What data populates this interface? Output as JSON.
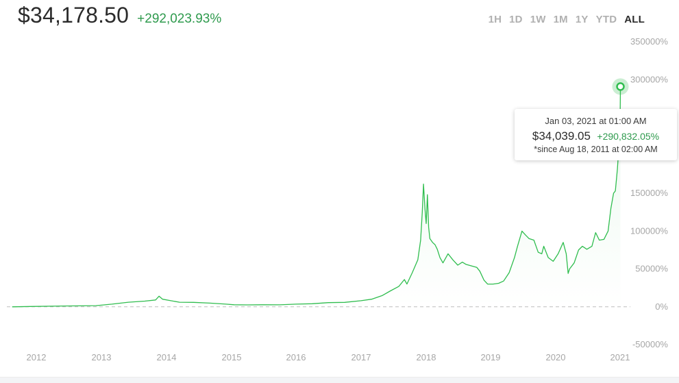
{
  "header": {
    "price": "$34,178.50",
    "change": "+292,023.93%"
  },
  "ranges": [
    {
      "label": "1H",
      "active": false
    },
    {
      "label": "1D",
      "active": false
    },
    {
      "label": "1W",
      "active": false
    },
    {
      "label": "1M",
      "active": false
    },
    {
      "label": "1Y",
      "active": false
    },
    {
      "label": "YTD",
      "active": false
    },
    {
      "label": "ALL",
      "active": true
    }
  ],
  "tooltip": {
    "date": "Jan 03, 2021 at 01:00 AM",
    "price": "$34,039.05",
    "change": "+290,832.05%",
    "since": "*since Aug 18, 2011 at 02:00 AM"
  },
  "colors": {
    "line": "#2fbd4e",
    "positive_text": "#2e9a4d",
    "zero_line": "#bdbdbd",
    "tick_text": "#a6a6a6"
  },
  "chart_data": {
    "type": "line",
    "title": "",
    "xlabel": "",
    "ylabel": "",
    "ylim": [
      -50000,
      350000
    ],
    "y_ticks": [
      "350000%",
      "300000%",
      "250000%",
      "200000%",
      "150000%",
      "100000%",
      "50000%",
      "0%",
      "-50000%"
    ],
    "y_tick_values": [
      350000,
      300000,
      250000,
      200000,
      150000,
      100000,
      50000,
      0,
      -50000
    ],
    "x_ticks": [
      "2012",
      "2013",
      "2014",
      "2015",
      "2016",
      "2017",
      "2018",
      "2019",
      "2020",
      "2021"
    ],
    "x_tick_values": [
      "2012-01-01",
      "2013-01-01",
      "2014-01-01",
      "2015-01-01",
      "2016-01-01",
      "2017-01-01",
      "2018-01-01",
      "2019-01-01",
      "2020-01-01",
      "2021-01-01"
    ],
    "grid": false,
    "zero_line": true,
    "highlighted_point": {
      "x": "2021-01-03",
      "y": 290832
    },
    "series": [
      {
        "x": [
          "2011-08-18",
          "2011-12-01",
          "2012-06-01",
          "2012-12-01",
          "2013-03-01",
          "2013-06-01",
          "2013-09-01",
          "2013-11-01",
          "2013-11-20",
          "2013-12-10",
          "2014-01-15",
          "2014-03-15",
          "2014-06-01",
          "2014-09-01",
          "2014-12-01",
          "2015-01-15",
          "2015-04-01",
          "2015-07-01",
          "2015-10-01",
          "2016-01-01",
          "2016-04-01",
          "2016-07-01",
          "2016-10-01",
          "2017-01-01",
          "2017-03-01",
          "2017-05-01",
          "2017-06-15",
          "2017-08-01",
          "2017-09-01",
          "2017-09-15",
          "2017-10-15",
          "2017-11-15",
          "2017-12-01",
          "2017-12-10",
          "2017-12-17",
          "2017-12-25",
          "2018-01-01",
          "2018-01-08",
          "2018-01-15",
          "2018-01-22",
          "2018-02-06",
          "2018-02-20",
          "2018-03-05",
          "2018-03-20",
          "2018-04-06",
          "2018-05-05",
          "2018-06-01",
          "2018-06-29",
          "2018-07-25",
          "2018-08-15",
          "2018-09-15",
          "2018-10-15",
          "2018-11-01",
          "2018-11-25",
          "2018-12-15",
          "2019-01-15",
          "2019-02-15",
          "2019-03-15",
          "2019-04-15",
          "2019-05-15",
          "2019-06-01",
          "2019-06-26",
          "2019-07-15",
          "2019-08-05",
          "2019-09-01",
          "2019-09-25",
          "2019-10-15",
          "2019-10-26",
          "2019-11-20",
          "2019-12-18",
          "2020-01-15",
          "2020-02-13",
          "2020-03-01",
          "2020-03-12",
          "2020-03-20",
          "2020-04-15",
          "2020-05-10",
          "2020-06-01",
          "2020-06-26",
          "2020-07-25",
          "2020-08-15",
          "2020-09-05",
          "2020-10-01",
          "2020-10-25",
          "2020-11-10",
          "2020-11-25",
          "2020-12-05",
          "2020-12-17",
          "2020-12-22",
          "2020-12-28",
          "2021-01-01",
          "2021-01-03"
        ],
        "values": [
          0,
          400,
          1000,
          1500,
          3500,
          6000,
          7500,
          9000,
          14000,
          10000,
          8500,
          6000,
          5800,
          4800,
          3500,
          2700,
          2500,
          2700,
          2600,
          3500,
          4000,
          5500,
          5800,
          8000,
          10000,
          15000,
          21000,
          27000,
          36000,
          30000,
          45000,
          62000,
          88000,
          125000,
          162000,
          130000,
          110000,
          148000,
          105000,
          90000,
          85000,
          82000,
          76000,
          65000,
          58000,
          70000,
          62000,
          55000,
          59000,
          56000,
          54000,
          52000,
          47000,
          35000,
          30000,
          30000,
          31000,
          34000,
          45000,
          65000,
          80000,
          100000,
          95000,
          90000,
          88000,
          72000,
          70000,
          80000,
          65000,
          60000,
          70000,
          85000,
          70000,
          44000,
          50000,
          58000,
          75000,
          80000,
          76000,
          80000,
          98000,
          88000,
          89000,
          100000,
          130000,
          150000,
          153000,
          182000,
          200000,
          220000,
          240000,
          290832
        ]
      }
    ]
  }
}
